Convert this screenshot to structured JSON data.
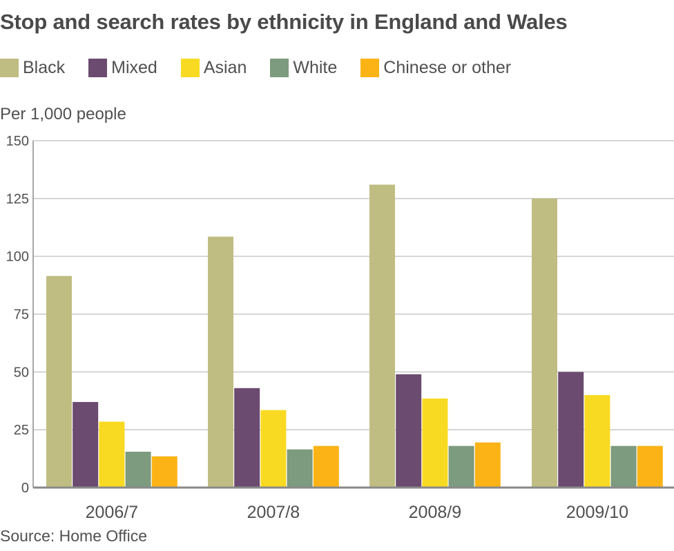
{
  "chart_data": {
    "type": "bar",
    "title": "Stop and search rates by ethnicity in England and Wales",
    "ylabel": "Per 1,000 people",
    "source": "Source: Home Office",
    "categories": [
      "2006/7",
      "2007/8",
      "2008/9",
      "2009/10"
    ],
    "ylim": [
      0,
      150
    ],
    "yticks": [
      "0",
      "25",
      "50",
      "75",
      "100",
      "125",
      "150"
    ],
    "grid": true,
    "legend_position": "top",
    "series": [
      {
        "name": "Black",
        "color": "#c0bd82",
        "values": [
          91.5,
          108.5,
          131,
          125
        ]
      },
      {
        "name": "Mixed",
        "color": "#6b4b70",
        "values": [
          37,
          43,
          49,
          50
        ]
      },
      {
        "name": "Asian",
        "color": "#f9da22",
        "values": [
          28.5,
          33.5,
          38.5,
          40
        ]
      },
      {
        "name": "White",
        "color": "#7d9b7e",
        "values": [
          15.5,
          16.5,
          18,
          18
        ]
      },
      {
        "name": "Chinese or other",
        "color": "#fbb316",
        "values": [
          13.5,
          18,
          19.5,
          18
        ]
      }
    ]
  }
}
